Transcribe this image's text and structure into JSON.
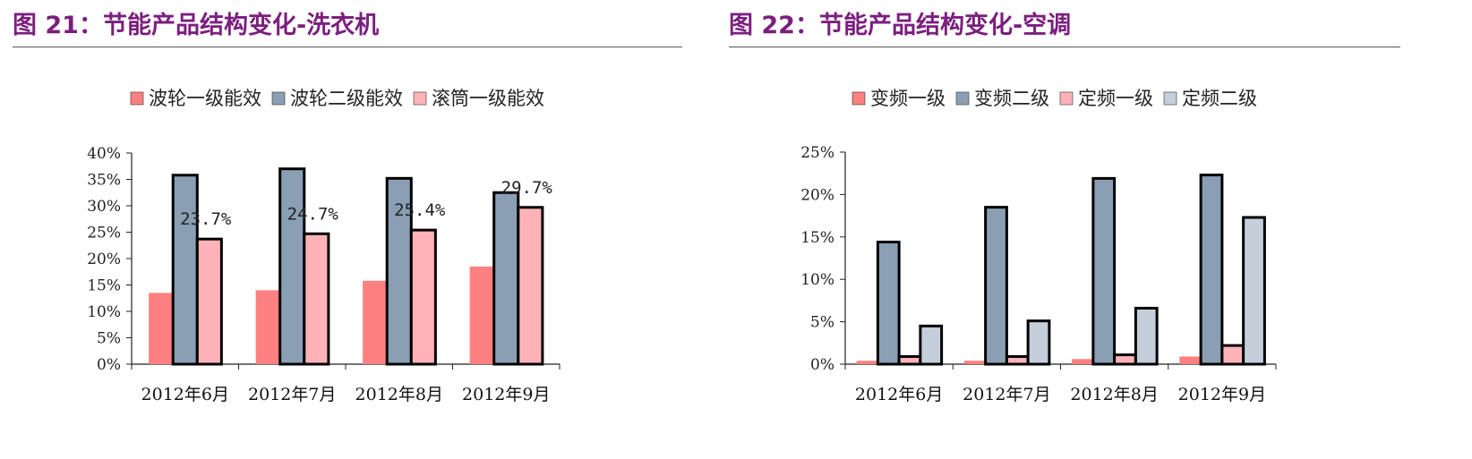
{
  "colors": {
    "title": "#7b1f7e",
    "washer_series": [
      "#ff8080",
      "#8a9fb4",
      "#ffb3b8"
    ],
    "ac_series": [
      "#ff8080",
      "#8a9fb4",
      "#ffb3b8",
      "#c5cfdb"
    ]
  },
  "chart_data": [
    {
      "type": "bar",
      "title": "图 21：节能产品结构变化-洗衣机",
      "categories": [
        "2012年6月",
        "2012年7月",
        "2012年8月",
        "2012年9月"
      ],
      "series": [
        {
          "name": "波轮一级能效",
          "values": [
            13.5,
            14.0,
            15.8,
            18.5
          ]
        },
        {
          "name": "波轮二级能效",
          "values": [
            35.8,
            37.0,
            35.2,
            32.5
          ]
        },
        {
          "name": "滚筒一级能效",
          "values": [
            23.7,
            24.7,
            25.4,
            29.7
          ]
        }
      ],
      "data_labels": [
        "23.7%",
        "24.7%",
        "25.4%",
        "29.7%"
      ],
      "ylim": [
        0,
        40
      ],
      "y_ticks": [
        "0%",
        "5%",
        "10%",
        "15%",
        "20%",
        "25%",
        "30%",
        "35%",
        "40%"
      ],
      "legend_position": "top",
      "grid": false
    },
    {
      "type": "bar",
      "title": "图 22：节能产品结构变化-空调",
      "categories": [
        "2012年6月",
        "2012年7月",
        "2012年8月",
        "2012年9月"
      ],
      "series": [
        {
          "name": "变频一级",
          "values": [
            0.4,
            0.4,
            0.6,
            0.9
          ]
        },
        {
          "name": "变频二级",
          "values": [
            14.4,
            18.5,
            21.9,
            22.3
          ]
        },
        {
          "name": "定频一级",
          "values": [
            0.9,
            0.9,
            1.1,
            2.2
          ]
        },
        {
          "name": "定频二级",
          "values": [
            4.5,
            5.1,
            6.6,
            17.3
          ]
        }
      ],
      "ylim": [
        0,
        25
      ],
      "y_ticks": [
        "0%",
        "5%",
        "10%",
        "15%",
        "20%",
        "25%"
      ],
      "legend_position": "top",
      "grid": false
    }
  ]
}
